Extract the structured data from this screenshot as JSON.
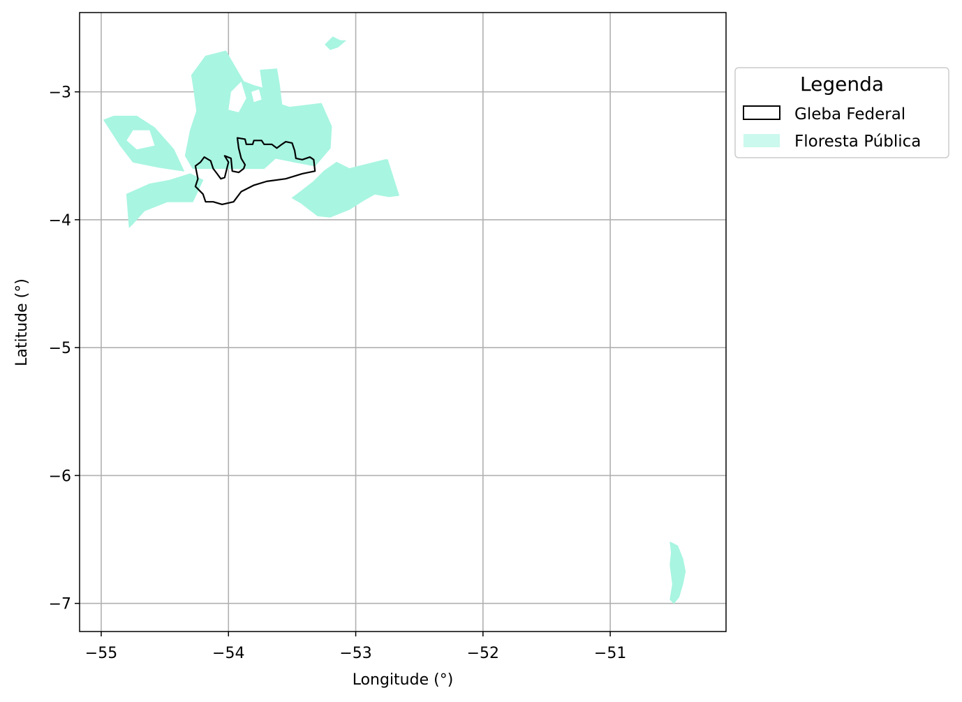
{
  "axes": {
    "xlabel": "Longitude (°)",
    "ylabel": "Latitude (°)",
    "xlim": [
      -55.17,
      -50.09
    ],
    "ylim": [
      -7.22,
      -2.38
    ],
    "grid": true,
    "xticks": [
      -55,
      -54,
      -53,
      -52,
      -51
    ],
    "yticks": [
      -3,
      -4,
      -5,
      -6,
      -7
    ],
    "xtick_labels": [
      "−55",
      "−54",
      "−53",
      "−52",
      "−51"
    ],
    "ytick_labels": [
      "−3",
      "−4",
      "−5",
      "−6",
      "−7"
    ]
  },
  "legend": {
    "title": "Legenda",
    "placement": "outside-upper-right",
    "items": [
      {
        "label": "Gleba Federal",
        "style": "outline",
        "color": "#000000"
      },
      {
        "label": "Floresta Pública",
        "style": "fill",
        "color": "#a8f5e1"
      }
    ]
  },
  "colors": {
    "forest": "#a8f5e1",
    "gleba_outline": "#000000",
    "grid": "#b0b0b0"
  },
  "layers": {
    "floresta_publica": [
      {
        "name": "northwest-mosaic",
        "coords": [
          [
            -54.29,
            -2.87
          ],
          [
            -54.18,
            -2.72
          ],
          [
            -54.02,
            -2.68
          ],
          [
            -53.98,
            -2.75
          ],
          [
            -53.88,
            -2.92
          ],
          [
            -53.8,
            -2.95
          ],
          [
            -53.73,
            -2.97
          ],
          [
            -53.75,
            -2.83
          ],
          [
            -53.62,
            -2.82
          ],
          [
            -53.6,
            -2.94
          ],
          [
            -53.58,
            -3.1
          ],
          [
            -53.52,
            -3.12
          ],
          [
            -53.27,
            -3.09
          ],
          [
            -53.19,
            -3.27
          ],
          [
            -53.2,
            -3.44
          ],
          [
            -53.32,
            -3.58
          ],
          [
            -53.48,
            -3.55
          ],
          [
            -53.63,
            -3.52
          ],
          [
            -53.72,
            -3.6
          ],
          [
            -53.9,
            -3.6
          ],
          [
            -54.08,
            -3.6
          ],
          [
            -54.28,
            -3.6
          ],
          [
            -54.34,
            -3.5
          ],
          [
            -54.3,
            -3.3
          ],
          [
            -54.25,
            -3.15
          ],
          [
            -54.27,
            -3.0
          ]
        ]
      },
      {
        "name": "west-striped-block",
        "coords": [
          [
            -54.98,
            -3.22
          ],
          [
            -54.9,
            -3.19
          ],
          [
            -54.72,
            -3.19
          ],
          [
            -54.58,
            -3.28
          ],
          [
            -54.43,
            -3.45
          ],
          [
            -54.35,
            -3.62
          ],
          [
            -54.55,
            -3.59
          ],
          [
            -54.75,
            -3.55
          ],
          [
            -54.85,
            -3.42
          ]
        ]
      },
      {
        "name": "southwest-stripes",
        "coords": [
          [
            -54.8,
            -3.8
          ],
          [
            -54.62,
            -3.72
          ],
          [
            -54.46,
            -3.69
          ],
          [
            -54.3,
            -3.64
          ],
          [
            -54.2,
            -3.69
          ],
          [
            -54.28,
            -3.86
          ],
          [
            -54.48,
            -3.86
          ],
          [
            -54.66,
            -3.93
          ],
          [
            -54.75,
            -4.03
          ],
          [
            -54.78,
            -4.06
          ]
        ]
      },
      {
        "name": "east-block",
        "coords": [
          [
            -53.25,
            -3.62
          ],
          [
            -53.15,
            -3.55
          ],
          [
            -53.05,
            -3.6
          ],
          [
            -52.77,
            -3.53
          ],
          [
            -52.75,
            -3.53
          ],
          [
            -52.66,
            -3.81
          ],
          [
            -52.74,
            -3.82
          ],
          [
            -52.85,
            -3.8
          ],
          [
            -52.94,
            -3.85
          ],
          [
            -53.05,
            -3.92
          ],
          [
            -53.2,
            -3.98
          ],
          [
            -53.3,
            -3.97
          ],
          [
            -53.43,
            -3.87
          ],
          [
            -53.5,
            -3.83
          ],
          [
            -53.42,
            -3.77
          ],
          [
            -53.33,
            -3.7
          ]
        ]
      },
      {
        "name": "north-islet",
        "coords": [
          [
            -53.24,
            -2.63
          ],
          [
            -53.18,
            -2.57
          ],
          [
            -53.12,
            -2.6
          ],
          [
            -53.08,
            -2.6
          ],
          [
            -53.14,
            -2.65
          ],
          [
            -53.2,
            -2.67
          ]
        ]
      },
      {
        "name": "southeast-strip",
        "coords": [
          [
            -50.53,
            -6.52
          ],
          [
            -50.47,
            -6.55
          ],
          [
            -50.43,
            -6.65
          ],
          [
            -50.41,
            -6.75
          ],
          [
            -50.43,
            -6.85
          ],
          [
            -50.46,
            -6.95
          ],
          [
            -50.5,
            -7.0
          ],
          [
            -50.53,
            -6.97
          ],
          [
            -50.51,
            -6.85
          ],
          [
            -50.53,
            -6.7
          ],
          [
            -50.52,
            -6.6
          ]
        ]
      }
    ],
    "gleba_federal": {
      "coords": [
        [
          -53.93,
          -3.36
        ],
        [
          -53.87,
          -3.37
        ],
        [
          -53.86,
          -3.41
        ],
        [
          -53.81,
          -3.41
        ],
        [
          -53.8,
          -3.38
        ],
        [
          -53.74,
          -3.38
        ],
        [
          -53.72,
          -3.41
        ],
        [
          -53.66,
          -3.41
        ],
        [
          -53.62,
          -3.44
        ],
        [
          -53.58,
          -3.41
        ],
        [
          -53.55,
          -3.39
        ],
        [
          -53.5,
          -3.4
        ],
        [
          -53.48,
          -3.46
        ],
        [
          -53.47,
          -3.52
        ],
        [
          -53.42,
          -3.53
        ],
        [
          -53.36,
          -3.51
        ],
        [
          -53.33,
          -3.53
        ],
        [
          -53.32,
          -3.62
        ],
        [
          -53.42,
          -3.64
        ],
        [
          -53.55,
          -3.68
        ],
        [
          -53.7,
          -3.7
        ],
        [
          -53.8,
          -3.73
        ],
        [
          -53.9,
          -3.78
        ],
        [
          -53.96,
          -3.86
        ],
        [
          -54.05,
          -3.88
        ],
        [
          -54.12,
          -3.86
        ],
        [
          -54.18,
          -3.86
        ],
        [
          -54.2,
          -3.8
        ],
        [
          -54.26,
          -3.74
        ],
        [
          -54.24,
          -3.68
        ],
        [
          -54.26,
          -3.58
        ],
        [
          -54.22,
          -3.55
        ],
        [
          -54.19,
          -3.51
        ],
        [
          -54.14,
          -3.54
        ],
        [
          -54.12,
          -3.6
        ],
        [
          -54.09,
          -3.64
        ],
        [
          -54.06,
          -3.68
        ],
        [
          -54.03,
          -3.67
        ],
        [
          -54.02,
          -3.63
        ],
        [
          -54.0,
          -3.55
        ],
        [
          -54.03,
          -3.5
        ],
        [
          -53.98,
          -3.52
        ],
        [
          -53.97,
          -3.62
        ],
        [
          -53.92,
          -3.63
        ],
        [
          -53.88,
          -3.6
        ],
        [
          -53.87,
          -3.57
        ],
        [
          -53.9,
          -3.52
        ],
        [
          -53.92,
          -3.44
        ]
      ]
    }
  }
}
